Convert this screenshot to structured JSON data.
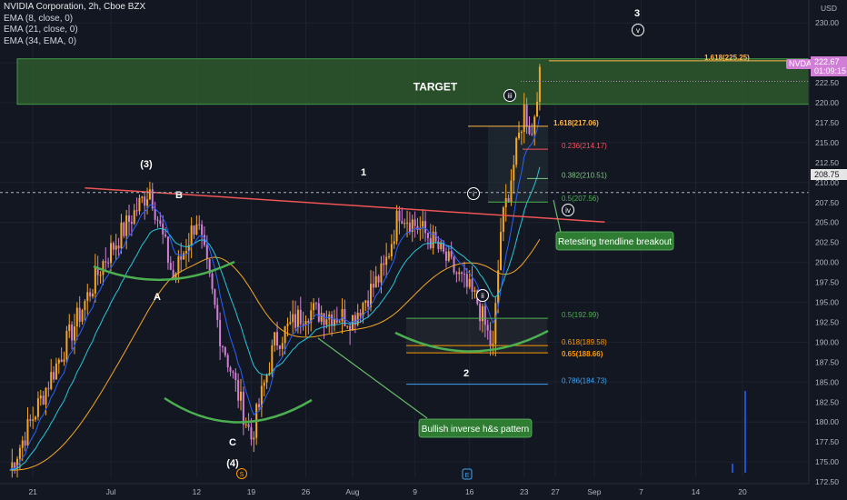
{
  "legend": {
    "title": "NVIDIA Corporation, 2h, Cboe BZX",
    "indicators": [
      "EMA (8, close, 0)",
      "EMA (21, close, 0)",
      "EMA (34, EMA, 0)"
    ]
  },
  "price_axis": {
    "currency": "USD",
    "ticks": [
      "230.00",
      "225.00",
      "222.50",
      "220.00",
      "217.50",
      "215.00",
      "212.50",
      "210.00",
      "207.50",
      "205.00",
      "202.50",
      "200.00",
      "197.50",
      "195.00",
      "192.50",
      "190.00",
      "187.50",
      "185.00",
      "182.50",
      "180.00",
      "177.50",
      "175.00",
      "172.50"
    ],
    "last_price_label": "222.67",
    "countdown": "01:09:15",
    "ticker_badge": "NVDA",
    "crosshair_price": "208.75"
  },
  "time_axis": {
    "labels": [
      "21",
      "Jul",
      "12",
      "19",
      "26",
      "Aug",
      "9",
      "16",
      "23",
      "27",
      "Sep",
      "7",
      "14",
      "20"
    ]
  },
  "annotations": {
    "target_label": "TARGET",
    "wave_3_top": "3",
    "wave_v": "v",
    "wave_iii": "iii",
    "wave_iv": "iv",
    "wave_i": "i",
    "wave_ii": "ii",
    "wave_paren_3": "(3)",
    "wave_paren_4": "(4)",
    "wave_1": "1",
    "wave_2": "2",
    "label_A": "A",
    "label_B": "B",
    "label_C": "C",
    "callout_retest": "Retesting trendline breakout",
    "callout_hs": "Bullish inverse h&s pattern",
    "event_s": "S",
    "event_e": "E"
  },
  "fib_levels": [
    {
      "label": "1.618(225.25)",
      "price": 225.25,
      "color": "#ffb74d"
    },
    {
      "label": "1.618(217.06)",
      "price": 217.06,
      "color": "#ffb74d"
    },
    {
      "label": "0.236(214.17)",
      "price": 214.17,
      "color": "#f7525f"
    },
    {
      "label": "0.382(210.51)",
      "price": 210.51,
      "color": "#81c784"
    },
    {
      "label": "0.5(207.56)",
      "price": 207.56,
      "color": "#4caf50"
    },
    {
      "label": "0.5(192.99)",
      "price": 192.99,
      "color": "#4caf50"
    },
    {
      "label": "0.618(189.58)",
      "price": 189.58,
      "color": "#ff9800"
    },
    {
      "label": "0.65(188.66)",
      "price": 188.66,
      "color": "#ff9800"
    },
    {
      "label": "0.786(184.73)",
      "price": 184.73,
      "color": "#42a5f5"
    }
  ],
  "colors": {
    "up": "#f5a623",
    "down": "#d17fd6",
    "ema8": "#2962ff",
    "ema21": "#26c6da",
    "ema34": "#f5a623",
    "trendline": "#f05454",
    "arc": "#4caf50",
    "target_zone": "#2e5e2c"
  },
  "chart_data": {
    "type": "candlestick",
    "symbol": "NVDA",
    "interval": "2h",
    "ylim": [
      171,
      231
    ],
    "target_zone": [
      219.8,
      225.5
    ],
    "trendline": {
      "from": [
        "Jun 30",
        209.5
      ],
      "to": [
        "Aug 31",
        205.0
      ]
    },
    "anchors": [
      {
        "date": "Jun 18",
        "price": 174
      },
      {
        "date": "Jun 23",
        "price": 185
      },
      {
        "date": "Jun 30",
        "price": 200
      },
      {
        "date": "Jul 6",
        "price": 209.3
      },
      {
        "date": "Jul 9",
        "price": 198
      },
      {
        "date": "Jul 12",
        "price": 205.5
      },
      {
        "date": "Jul 15",
        "price": 191
      },
      {
        "date": "Jul 19",
        "price": 178
      },
      {
        "date": "Jul 22",
        "price": 190
      },
      {
        "date": "Jul 26",
        "price": 194
      },
      {
        "date": "Aug 1",
        "price": 193
      },
      {
        "date": "Aug 5",
        "price": 199
      },
      {
        "date": "Aug 7",
        "price": 206.5
      },
      {
        "date": "Aug 11",
        "price": 203
      },
      {
        "date": "Aug 14",
        "price": 199
      },
      {
        "date": "Aug 17",
        "price": 195
      },
      {
        "date": "Aug 19",
        "price": 189
      },
      {
        "date": "Aug 20",
        "price": 204
      },
      {
        "date": "Aug 22",
        "price": 214
      },
      {
        "date": "Aug 23",
        "price": 219.2
      },
      {
        "date": "Aug 24",
        "price": 216
      },
      {
        "date": "Aug 25",
        "price": 224.5
      }
    ]
  }
}
